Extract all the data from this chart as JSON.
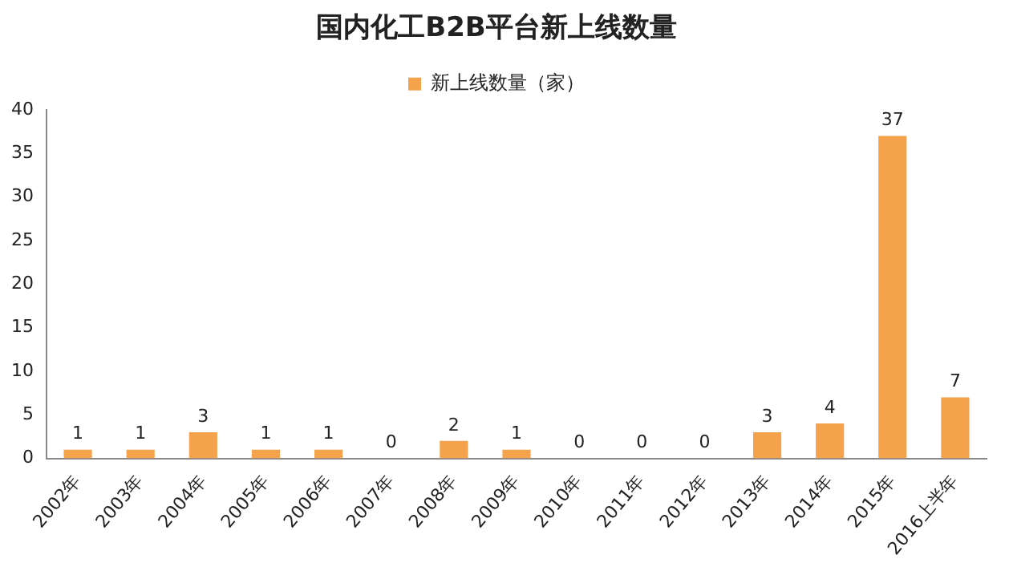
{
  "chart_data": {
    "type": "bar",
    "title": "国内化工B2B平台新上线数量",
    "categories": [
      "2002年",
      "2003年",
      "2004年",
      "2005年",
      "2006年",
      "2007年",
      "2008年",
      "2009年",
      "2010年",
      "2011年",
      "2012年",
      "2013年",
      "2014年",
      "2015年",
      "2016上半年"
    ],
    "series": [
      {
        "name": "新上线数量（家）",
        "color": "#f4a24c",
        "values": [
          1,
          1,
          3,
          1,
          1,
          0,
          2,
          1,
          0,
          0,
          0,
          3,
          4,
          37,
          7
        ]
      }
    ],
    "ylim": [
      0,
      40
    ],
    "yticks": [
      0,
      5,
      10,
      15,
      20,
      25,
      30,
      35,
      40
    ],
    "grid": false,
    "legend": "top",
    "data_labels": true
  }
}
